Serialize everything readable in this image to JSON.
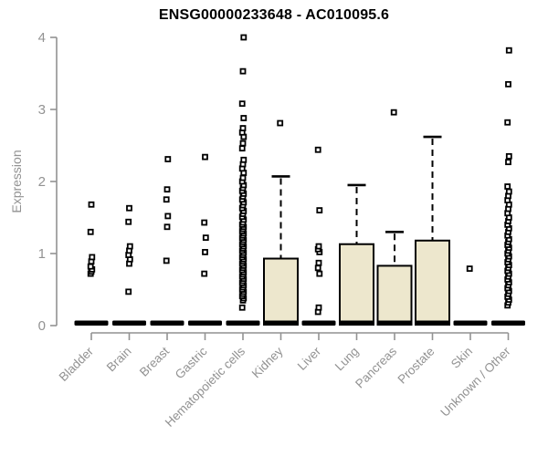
{
  "chart_data": {
    "type": "boxplot",
    "title": "ENSG00000233648 - AC010095.6",
    "ylabel": "Expression",
    "xlabel": "",
    "ylim": [
      0,
      4
    ],
    "yticks": [
      0,
      1,
      2,
      3,
      4
    ],
    "grid": false,
    "legend": "none",
    "colors": {
      "box_fill": "#ede7cd",
      "box_stroke": "#000000",
      "zero_bar": "#000000",
      "outlier_fill": "#ffffff",
      "outlier_stroke": "#000000",
      "axis": "#929292",
      "tick_text": "#929292",
      "title_text": "#000000"
    },
    "categories": [
      "Bladder",
      "Brain",
      "Breast",
      "Gastric",
      "Hematopoietic cells",
      "Kidney",
      "Liver",
      "Lung",
      "Pancreas",
      "Prostate",
      "Skin",
      "Unknown / Other"
    ],
    "series": [
      {
        "category": "Bladder",
        "median": 0,
        "q1": 0,
        "q3": 0,
        "whisker_low": 0,
        "whisker_high": 0,
        "outliers": [
          0.72,
          0.75,
          0.78,
          0.82,
          0.89,
          0.95,
          1.3,
          1.68
        ]
      },
      {
        "category": "Brain",
        "median": 0,
        "q1": 0,
        "q3": 0,
        "whisker_low": 0,
        "whisker_high": 0,
        "outliers": [
          0.47,
          0.86,
          0.92,
          0.98,
          1.04,
          1.1,
          1.44,
          1.63
        ]
      },
      {
        "category": "Breast",
        "median": 0,
        "q1": 0,
        "q3": 0,
        "whisker_low": 0,
        "whisker_high": 0,
        "outliers": [
          0.9,
          1.37,
          1.52,
          1.75,
          1.89,
          2.31
        ]
      },
      {
        "category": "Gastric",
        "median": 0,
        "q1": 0,
        "q3": 0,
        "whisker_low": 0,
        "whisker_high": 0,
        "outliers": [
          0.72,
          1.02,
          1.22,
          1.43,
          2.34
        ]
      },
      {
        "category": "Hematopoietic cells",
        "median": 0,
        "q1": 0,
        "q3": 0,
        "whisker_low": 0,
        "whisker_high": 0,
        "outliers": [
          0.25,
          0.35,
          0.38,
          0.41,
          0.44,
          0.47,
          0.5,
          0.53,
          0.56,
          0.59,
          0.62,
          0.65,
          0.68,
          0.71,
          0.74,
          0.77,
          0.8,
          0.83,
          0.86,
          0.89,
          0.92,
          0.95,
          0.98,
          1.01,
          1.04,
          1.07,
          1.1,
          1.13,
          1.16,
          1.19,
          1.22,
          1.25,
          1.28,
          1.31,
          1.34,
          1.37,
          1.4,
          1.43,
          1.47,
          1.51,
          1.55,
          1.59,
          1.63,
          1.67,
          1.71,
          1.75,
          1.79,
          1.83,
          1.87,
          1.91,
          1.95,
          2.0,
          2.05,
          2.12,
          2.18,
          2.24,
          2.3,
          2.46,
          2.53,
          2.62,
          2.68,
          2.74,
          2.88,
          3.08,
          3.53,
          4.0
        ]
      },
      {
        "category": "Kidney",
        "median": 0,
        "q1": 0,
        "q3": 0.93,
        "whisker_low": 0,
        "whisker_high": 2.07,
        "outliers": [
          2.81
        ]
      },
      {
        "category": "Liver",
        "median": 0,
        "q1": 0,
        "q3": 0,
        "whisker_low": 0,
        "whisker_high": 0,
        "outliers": [
          0.19,
          0.25,
          0.72,
          0.8,
          0.87,
          1.02,
          1.06,
          1.1,
          1.6,
          2.44
        ]
      },
      {
        "category": "Lung",
        "median": 0,
        "q1": 0,
        "q3": 1.13,
        "whisker_low": 0,
        "whisker_high": 1.95,
        "outliers": []
      },
      {
        "category": "Pancreas",
        "median": 0,
        "q1": 0,
        "q3": 0.83,
        "whisker_low": 0,
        "whisker_high": 1.3,
        "outliers": [
          2.96
        ]
      },
      {
        "category": "Prostate",
        "median": 0,
        "q1": 0,
        "q3": 1.18,
        "whisker_low": 0,
        "whisker_high": 2.62,
        "outliers": []
      },
      {
        "category": "Skin",
        "median": 0,
        "q1": 0,
        "q3": 0,
        "whisker_low": 0,
        "whisker_high": 0,
        "outliers": [
          0.79
        ]
      },
      {
        "category": "Unknown / Other",
        "median": 0,
        "q1": 0,
        "q3": 0,
        "whisker_low": 0,
        "whisker_high": 0,
        "outliers": [
          0.28,
          0.32,
          0.36,
          0.4,
          0.44,
          0.48,
          0.52,
          0.56,
          0.6,
          0.64,
          0.68,
          0.72,
          0.76,
          0.8,
          0.84,
          0.88,
          0.92,
          0.96,
          1.0,
          1.04,
          1.08,
          1.12,
          1.16,
          1.2,
          1.25,
          1.3,
          1.35,
          1.4,
          1.45,
          1.5,
          1.56,
          1.62,
          1.68,
          1.74,
          1.8,
          1.86,
          1.93,
          2.27,
          2.35,
          2.82,
          3.35,
          3.82
        ]
      }
    ]
  }
}
